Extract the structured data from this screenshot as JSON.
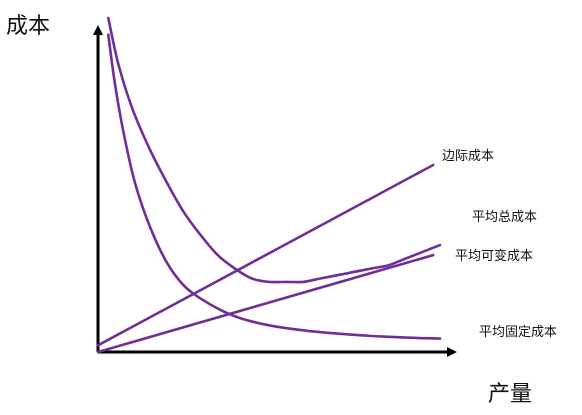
{
  "chart_data": {
    "type": "line",
    "title": "",
    "xlabel": "产量",
    "ylabel": "成本",
    "xlim": [
      0,
      100
    ],
    "ylim": [
      0,
      100
    ],
    "grid": false,
    "legend": "inline-right",
    "series": [
      {
        "name": "边际成本",
        "color": "#6f2f96",
        "x": [
          0,
          98
        ],
        "y": [
          2,
          56
        ]
      },
      {
        "name": "平均总成本",
        "color": "#6f2f96",
        "x": [
          3,
          6,
          10,
          15,
          20,
          25,
          30,
          35,
          40,
          45,
          50,
          55,
          60,
          65,
          70,
          75,
          80,
          85,
          90,
          95,
          100
        ],
        "y": [
          100,
          86,
          73,
          61,
          51,
          42,
          35,
          29,
          25,
          22,
          21,
          21,
          21,
          22,
          23,
          24,
          25,
          26,
          28,
          30,
          32
        ]
      },
      {
        "name": "平均可变成本",
        "color": "#6f2f96",
        "x": [
          0,
          98
        ],
        "y": [
          0,
          29
        ]
      },
      {
        "name": "平均固定成本",
        "color": "#6f2f96",
        "x": [
          3,
          5,
          8,
          11,
          15,
          20,
          25,
          30,
          36,
          42,
          50,
          60,
          70,
          80,
          90,
          100
        ],
        "y": [
          95,
          80,
          63,
          50,
          38,
          27,
          20,
          16,
          12.5,
          10,
          8,
          6.5,
          5.5,
          4.8,
          4.3,
          4
        ]
      }
    ]
  }
}
